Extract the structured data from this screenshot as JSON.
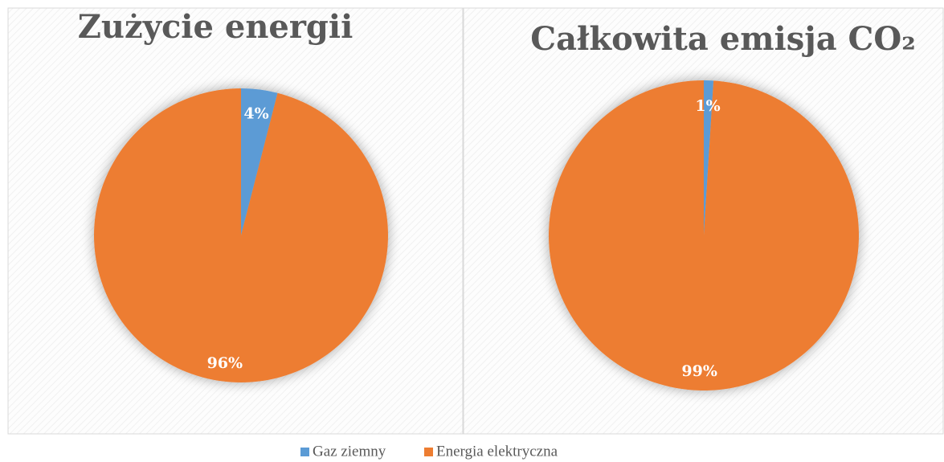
{
  "chart_data": [
    {
      "type": "pie",
      "title": "Zużycie energii",
      "categories": [
        "Gaz ziemny",
        "Energia elektryczna"
      ],
      "values": [
        4,
        96
      ],
      "value_labels": [
        "4%",
        "96%"
      ],
      "colors": [
        "#5b9bd5",
        "#ed7d31"
      ]
    },
    {
      "type": "pie",
      "title": "Całkowita emisja CO₂",
      "categories": [
        "Gaz ziemny",
        "Energia elektryczna"
      ],
      "values": [
        1,
        99
      ],
      "value_labels": [
        "1%",
        "99%"
      ],
      "colors": [
        "#5b9bd5",
        "#ed7d31"
      ]
    }
  ]
}
